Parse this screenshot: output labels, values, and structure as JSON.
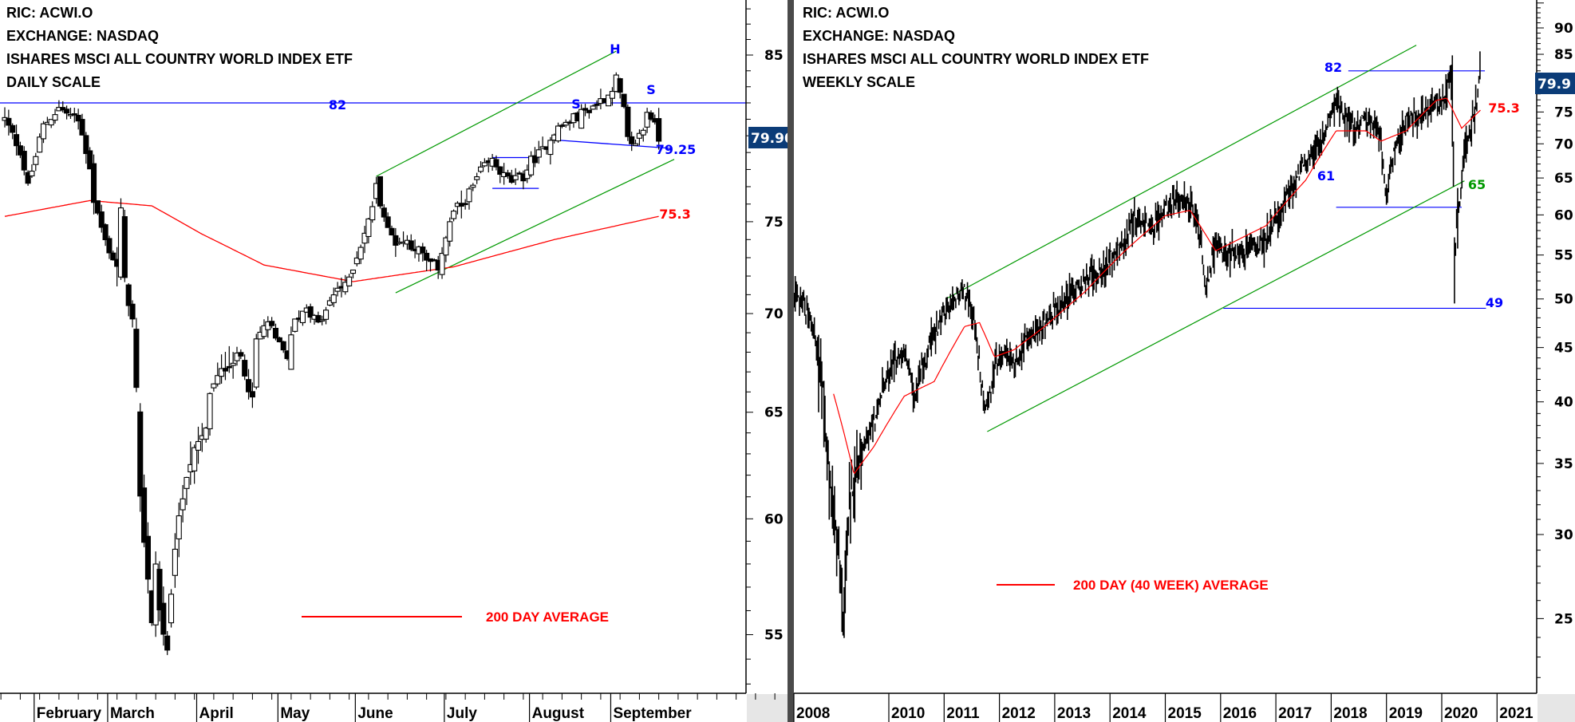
{
  "left_header": {
    "ric": "RIC: ACWI.O",
    "exchange": "EXCHANGE: NASDAQ",
    "name": "ISHARES MSCI ALL COUNTRY WORLD INDEX ETF",
    "scale": "DAILY SCALE"
  },
  "right_header": {
    "ric": "RIC: ACWI.O",
    "exchange": "EXCHANGE: NASDAQ",
    "name": "ISHARES MSCI ALL COUNTRY WORLD INDEX ETF",
    "scale": "WEEKLY SCALE"
  },
  "colors": {
    "up_fill": "#ffffff",
    "down_fill": "#000000",
    "ma": "#ff0000",
    "channel": "#009900",
    "level": "#0000ff",
    "price_box": "#0b3c78"
  },
  "chart_data": [
    {
      "type": "candlestick",
      "title": "ISHARES MSCI ALL COUNTRY WORLD INDEX ETF - DAILY SCALE",
      "y_scale": "log",
      "ylim": [
        52.5,
        88
      ],
      "y_ticks": [
        "55",
        "60",
        "65",
        "70",
        "75",
        "85"
      ],
      "y_tick_values": [
        55,
        60,
        65,
        70,
        75,
        85
      ],
      "x_months": [
        "February",
        "March",
        "April",
        "May",
        "June",
        "July",
        "August",
        "September"
      ],
      "month_start_day": [
        8,
        27,
        50,
        71,
        91,
        114,
        136,
        157
      ],
      "last_day": 169,
      "close_keypoints": [
        [
          0,
          81.0
        ],
        [
          4,
          79.1
        ],
        [
          6,
          77.0
        ],
        [
          10,
          80.6
        ],
        [
          14,
          81.7
        ],
        [
          19,
          80.9
        ],
        [
          22,
          78.2
        ],
        [
          23,
          76.2
        ],
        [
          26,
          73.9
        ],
        [
          29,
          72.5
        ],
        [
          30,
          75.6
        ],
        [
          31,
          71.7
        ],
        [
          33,
          69.6
        ],
        [
          34,
          66.0
        ],
        [
          35,
          60.8
        ],
        [
          38,
          55.6
        ],
        [
          39,
          58.0
        ],
        [
          40,
          56.0
        ],
        [
          42,
          54.2
        ],
        [
          44,
          58.8
        ],
        [
          47,
          62.1
        ],
        [
          49,
          63.1
        ],
        [
          52,
          64.1
        ],
        [
          53,
          66.0
        ],
        [
          56,
          67.0
        ],
        [
          58,
          67.5
        ],
        [
          61,
          67.8
        ],
        [
          64,
          65.5
        ],
        [
          65,
          68.6
        ],
        [
          68,
          69.6
        ],
        [
          70,
          68.6
        ],
        [
          73,
          67.8
        ],
        [
          75,
          69.6
        ],
        [
          78,
          70.4
        ],
        [
          81,
          69.4
        ],
        [
          83,
          70.1
        ],
        [
          86,
          71.4
        ],
        [
          88,
          71.4
        ],
        [
          91,
          73.1
        ],
        [
          94,
          75.0
        ],
        [
          96,
          77.0
        ],
        [
          99,
          74.5
        ],
        [
          101,
          73.9
        ],
        [
          104,
          73.9
        ],
        [
          107,
          73.4
        ],
        [
          109,
          72.8
        ],
        [
          112,
          72.5
        ],
        [
          113,
          73.4
        ],
        [
          116,
          75.6
        ],
        [
          118,
          75.9
        ],
        [
          121,
          77.0
        ],
        [
          123,
          77.9
        ],
        [
          126,
          78.5
        ],
        [
          129,
          77.6
        ],
        [
          131,
          77.3
        ],
        [
          134,
          77.6
        ],
        [
          136,
          78.5
        ],
        [
          139,
          79.1
        ],
        [
          142,
          80.3
        ],
        [
          144,
          80.6
        ],
        [
          148,
          81.2
        ],
        [
          152,
          81.8
        ],
        [
          156,
          82.5
        ],
        [
          158,
          83.5
        ],
        [
          160,
          81.5
        ],
        [
          161,
          79.7
        ],
        [
          162,
          79.3
        ],
        [
          165,
          80.4
        ],
        [
          166,
          81.5
        ],
        [
          167,
          81.2
        ],
        [
          169,
          79.9
        ]
      ],
      "ma_200_keypoints": [
        [
          0,
          75.3
        ],
        [
          22,
          76.2
        ],
        [
          38,
          75.9
        ],
        [
          51,
          74.3
        ],
        [
          67,
          72.6
        ],
        [
          90,
          71.7
        ],
        [
          116,
          72.5
        ],
        [
          142,
          74.0
        ],
        [
          169,
          75.3
        ]
      ],
      "last_price": "79.90",
      "last_price_value": 79.9,
      "resistance": {
        "value": 82,
        "label": "82"
      },
      "neckline": {
        "points": [
          [
            142,
            79.75
          ],
          [
            172,
            79.25
          ]
        ],
        "label": "79.25"
      },
      "ma_label": "75.3",
      "rectangle": {
        "from_day": 126,
        "to_day": 138,
        "top": 78.7,
        "bottom": 76.9
      },
      "channel_upper": [
        [
          96,
          77.6
        ],
        [
          158,
          85.25
        ]
      ],
      "channel_lower": [
        [
          101,
          71.1
        ],
        [
          173,
          78.6
        ]
      ],
      "pattern_labels": {
        "left_shoulder": "S",
        "head": "H",
        "right_shoulder": "S"
      },
      "legend": "200 DAY AVERAGE"
    },
    {
      "type": "bar",
      "title": "ISHARES MSCI ALL COUNTRY WORLD INDEX ETF - WEEKLY SCALE",
      "y_scale": "log",
      "ylim": [
        22,
        95
      ],
      "y_ticks": [
        "25",
        "30",
        "35",
        "40",
        "45",
        "50",
        "55",
        "60",
        "65",
        "70",
        "75",
        "85",
        "90"
      ],
      "y_tick_values": [
        25,
        30,
        35,
        40,
        45,
        50,
        55,
        60,
        65,
        70,
        75,
        85,
        90
      ],
      "x_years": [
        "2010",
        "2011",
        "2012",
        "2013",
        "2014",
        "2015",
        "2016",
        "2017",
        "2018",
        "2019",
        "2020",
        "2021"
      ],
      "x_first_label": "2008",
      "close_keypoints": [
        [
          2008.28,
          50.8
        ],
        [
          2008.46,
          49.7
        ],
        [
          2008.64,
          46.6
        ],
        [
          2008.82,
          40.9
        ],
        [
          2008.91,
          34.4
        ],
        [
          2009.1,
          28.3
        ],
        [
          2009.19,
          24.3
        ],
        [
          2009.28,
          32.2
        ],
        [
          2009.46,
          35.1
        ],
        [
          2009.73,
          38.3
        ],
        [
          2009.91,
          41.8
        ],
        [
          2010.09,
          43.6
        ],
        [
          2010.28,
          44.6
        ],
        [
          2010.46,
          40.0
        ],
        [
          2010.64,
          43.6
        ],
        [
          2010.91,
          47.5
        ],
        [
          2011.18,
          50.2
        ],
        [
          2011.37,
          50.8
        ],
        [
          2011.55,
          47.5
        ],
        [
          2011.73,
          39.1
        ],
        [
          2011.91,
          42.7
        ],
        [
          2012.09,
          44.6
        ],
        [
          2012.27,
          43.6
        ],
        [
          2012.46,
          45.5
        ],
        [
          2012.82,
          47.5
        ],
        [
          2013.18,
          50.2
        ],
        [
          2013.55,
          52.0
        ],
        [
          2013.91,
          53.7
        ],
        [
          2014.27,
          56.7
        ],
        [
          2014.45,
          59.9
        ],
        [
          2014.73,
          58.0
        ],
        [
          2015.0,
          60.6
        ],
        [
          2015.27,
          62.6
        ],
        [
          2015.45,
          61.3
        ],
        [
          2015.64,
          56.7
        ],
        [
          2015.73,
          50.2
        ],
        [
          2015.91,
          56.7
        ],
        [
          2016.09,
          54.9
        ],
        [
          2016.45,
          55.5
        ],
        [
          2016.82,
          56.7
        ],
        [
          2017.18,
          61.9
        ],
        [
          2017.54,
          67.5
        ],
        [
          2017.91,
          72.0
        ],
        [
          2018.09,
          76.9
        ],
        [
          2018.18,
          74.4
        ],
        [
          2018.45,
          73.6
        ],
        [
          2018.72,
          73.6
        ],
        [
          2018.9,
          71.3
        ],
        [
          2018.99,
          62.0
        ],
        [
          2019.09,
          68.0
        ],
        [
          2019.36,
          73.6
        ],
        [
          2019.72,
          75.2
        ],
        [
          2020.09,
          77.7
        ],
        [
          2020.14,
          81.2
        ],
        [
          2020.2,
          75.0
        ],
        [
          2020.23,
          54.0
        ],
        [
          2020.27,
          58.0
        ],
        [
          2020.36,
          65.2
        ],
        [
          2020.45,
          70.0
        ],
        [
          2020.55,
          73.6
        ],
        [
          2020.64,
          77.7
        ],
        [
          2020.7,
          82.1
        ]
      ],
      "ma_40w_keypoints": [
        [
          2009.0,
          40.7
        ],
        [
          2009.37,
          34.2
        ],
        [
          2009.73,
          36.3
        ],
        [
          2010.28,
          40.5
        ],
        [
          2010.82,
          41.8
        ],
        [
          2011.37,
          47.1
        ],
        [
          2011.64,
          47.5
        ],
        [
          2011.91,
          44.1
        ],
        [
          2012.27,
          44.8
        ],
        [
          2012.82,
          47.1
        ],
        [
          2013.55,
          50.8
        ],
        [
          2014.27,
          55.5
        ],
        [
          2015.0,
          59.9
        ],
        [
          2015.45,
          60.6
        ],
        [
          2015.91,
          55.5
        ],
        [
          2016.27,
          56.7
        ],
        [
          2016.82,
          58.6
        ],
        [
          2017.54,
          64.7
        ],
        [
          2018.09,
          72.0
        ],
        [
          2018.63,
          72.0
        ],
        [
          2018.9,
          70.4
        ],
        [
          2019.36,
          72.0
        ],
        [
          2019.9,
          76.9
        ],
        [
          2020.09,
          77.3
        ],
        [
          2020.36,
          72.4
        ],
        [
          2020.7,
          75.3
        ]
      ],
      "last_price": "79.9",
      "last_price_value": 79.9,
      "levels": [
        {
          "value": 82,
          "label": "82",
          "from": 2018.31,
          "to": 2020.78
        },
        {
          "value": 61,
          "label": "61",
          "from": 2018.09,
          "to": 2020.36
        },
        {
          "value": 49,
          "label": "49",
          "from": 2016.05,
          "to": 2020.8
        }
      ],
      "channel_upper": [
        [
          2011.03,
          50.0
        ],
        [
          2019.54,
          86.7
        ]
      ],
      "channel_lower": [
        [
          2011.78,
          37.5
        ],
        [
          2020.41,
          64.6
        ]
      ],
      "ma_label": "75.3",
      "channel_label": "65",
      "legend": "200 DAY (40 WEEK) AVERAGE"
    }
  ]
}
